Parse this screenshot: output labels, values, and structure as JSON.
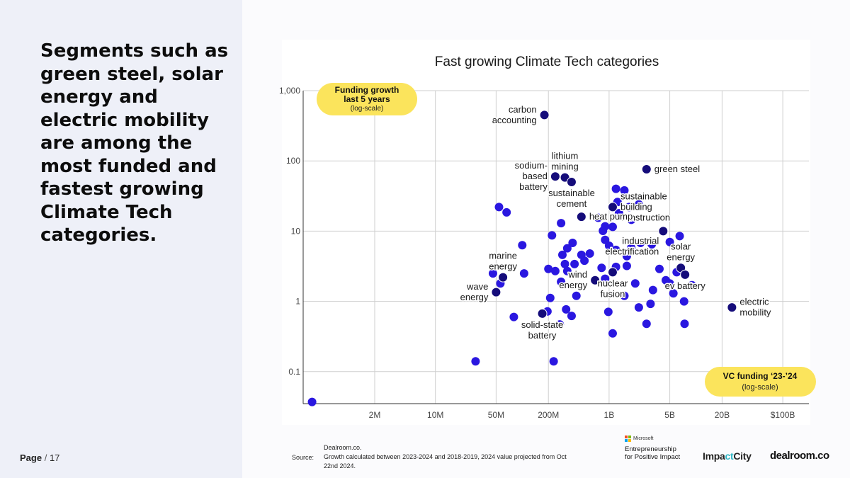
{
  "headline": "Segments such as green steel, solar energy and electric mobility are among the most funded and fastest growing Climate Tech categories.",
  "page": {
    "label": "Page",
    "separator": "/",
    "number": "17"
  },
  "colors": {
    "dot": "#2a17e0",
    "highlight_dot": "#150c7a",
    "badge": "#fbe45c",
    "grid": "#cfcfcf",
    "left_panel": "#eef0f8"
  },
  "chart_data": {
    "type": "scatter",
    "title": "Fast growing Climate Tech categories",
    "xlabel": {
      "title": "VC funding ‘23-’24",
      "subtitle": "(log-scale)"
    },
    "ylabel": {
      "title": "Funding growth last 5 years",
      "subtitle": "(log-scale)"
    },
    "x_scale": "log",
    "y_scale": "log",
    "xlim": [
      300000,
      200000000000
    ],
    "ylim": [
      0.035,
      1000
    ],
    "x_ticks": [
      {
        "value": 2000000,
        "label": "2M"
      },
      {
        "value": 10000000,
        "label": "10M"
      },
      {
        "value": 50000000,
        "label": "50M"
      },
      {
        "value": 200000000,
        "label": "200M"
      },
      {
        "value": 1000000000,
        "label": "1B"
      },
      {
        "value": 5000000000,
        "label": "5B"
      },
      {
        "value": 20000000000,
        "label": "20B"
      },
      {
        "value": 100000000000,
        "label": "$100B"
      }
    ],
    "y_ticks": [
      {
        "value": 0.1,
        "label": "0.1"
      },
      {
        "value": 1,
        "label": "1"
      },
      {
        "value": 10,
        "label": "10"
      },
      {
        "value": 100,
        "label": "100"
      },
      {
        "value": 1000,
        "label": "1,000"
      }
    ],
    "labeled_points": [
      {
        "name": "carbon accounting",
        "lines": [
          "carbon",
          "accounting"
        ],
        "x": 180000000,
        "y": 450,
        "label_pos": "left"
      },
      {
        "name": "lithium mining",
        "lines": [
          "lithium",
          "mining"
        ],
        "x": 310000000,
        "y": 58,
        "label_pos": "above"
      },
      {
        "name": "sodium-based battery",
        "lines": [
          "sodium-",
          "based",
          "battery"
        ],
        "x": 240000000,
        "y": 60,
        "label_pos": "left"
      },
      {
        "name": "sustainable cement",
        "lines": [
          "sustainable",
          "cement"
        ],
        "x": 370000000,
        "y": 50,
        "label_pos": "below"
      },
      {
        "name": "green steel",
        "lines": [
          "green steel"
        ],
        "x": 2700000000,
        "y": 76,
        "label_pos": "right"
      },
      {
        "name": "sustainable building construction",
        "lines": [
          "sustainable",
          "building",
          "construction"
        ],
        "x": 1100000000,
        "y": 22,
        "label_pos": "right"
      },
      {
        "name": "heat pump",
        "lines": [
          "heat pump"
        ],
        "x": 480000000,
        "y": 16,
        "label_pos": "right"
      },
      {
        "name": "industrial electrification",
        "lines": [
          "industrial",
          "electrification"
        ],
        "x": 4200000000,
        "y": 10,
        "label_pos": "below-left"
      },
      {
        "name": "marine energy",
        "lines": [
          "marine",
          "energy"
        ],
        "x": 60000000,
        "y": 2.2,
        "label_pos": "above"
      },
      {
        "name": "wave energy",
        "lines": [
          "wave",
          "energy"
        ],
        "x": 50000000,
        "y": 1.35,
        "label_pos": "left"
      },
      {
        "name": "solid-state battery",
        "lines": [
          "solid-state",
          "battery"
        ],
        "x": 170000000,
        "y": 0.67,
        "label_pos": "below"
      },
      {
        "name": "wind energy",
        "lines": [
          "wind",
          "energy"
        ],
        "x": 690000000,
        "y": 2.0,
        "label_pos": "left"
      },
      {
        "name": "nuclear fusion",
        "lines": [
          "nuclear",
          "fusion"
        ],
        "x": 1100000000,
        "y": 2.6,
        "label_pos": "below"
      },
      {
        "name": "solar energy",
        "lines": [
          "solar",
          "energy"
        ],
        "x": 6700000000,
        "y": 3.0,
        "label_pos": "above"
      },
      {
        "name": "ev battery",
        "lines": [
          "ev battery"
        ],
        "x": 7500000000,
        "y": 2.4,
        "label_pos": "below"
      },
      {
        "name": "electric mobility",
        "lines": [
          "electric",
          "mobility"
        ],
        "x": 26000000000,
        "y": 0.82,
        "label_pos": "right"
      }
    ],
    "other_points": [
      [
        380000,
        0.037
      ],
      [
        29000000,
        0.14
      ],
      [
        230000000,
        0.14
      ],
      [
        80000000,
        0.6
      ],
      [
        195000000,
        0.72
      ],
      [
        270000000,
        0.47
      ],
      [
        370000000,
        0.62
      ],
      [
        1100000000,
        0.35
      ],
      [
        2700000000,
        0.48
      ],
      [
        7400000000,
        0.48
      ],
      [
        210000000,
        1.12
      ],
      [
        320000000,
        0.77
      ],
      [
        420000000,
        1.2
      ],
      [
        980000000,
        0.71
      ],
      [
        1500000000,
        1.2
      ],
      [
        3000000000,
        0.92
      ],
      [
        7300000000,
        1.0
      ],
      [
        2200000000,
        0.82
      ],
      [
        46000000,
        2.5
      ],
      [
        56000000,
        1.8
      ],
      [
        105000000,
        2.5
      ],
      [
        200000000,
        2.9
      ],
      [
        240000000,
        2.7
      ],
      [
        280000000,
        1.9
      ],
      [
        330000000,
        2.7
      ],
      [
        400000000,
        3.4
      ],
      [
        480000000,
        4.6
      ],
      [
        290000000,
        4.6
      ],
      [
        310000000,
        3.4
      ],
      [
        820000000,
        3.0
      ],
      [
        900000000,
        2.1
      ],
      [
        1200000000,
        3.1
      ],
      [
        1600000000,
        3.2
      ],
      [
        2000000000,
        1.8
      ],
      [
        3800000000,
        2.9
      ],
      [
        4500000000,
        2.0
      ],
      [
        5000000000,
        1.8
      ],
      [
        5500000000,
        1.3
      ],
      [
        6000000000,
        2.6
      ],
      [
        9000000000,
        1.7
      ],
      [
        3200000000,
        1.45
      ],
      [
        100000000,
        6.3
      ],
      [
        220000000,
        8.7
      ],
      [
        330000000,
        5.7
      ],
      [
        380000000,
        6.8
      ],
      [
        850000000,
        10.1
      ],
      [
        900000000,
        7.5
      ],
      [
        1000000000,
        6.2
      ],
      [
        1200000000,
        5.4
      ],
      [
        1600000000,
        4.4
      ],
      [
        1800000000,
        5.8
      ],
      [
        2300000000,
        6.8
      ],
      [
        3100000000,
        6.5
      ],
      [
        5000000000,
        7.0
      ],
      [
        6500000000,
        8.5
      ],
      [
        600000000,
        4.8
      ],
      [
        520000000,
        3.8
      ],
      [
        280000000,
        13
      ],
      [
        750000000,
        15.5
      ],
      [
        900000000,
        11.7
      ],
      [
        1100000000,
        11.5
      ],
      [
        1800000000,
        14.5
      ],
      [
        2200000000,
        24
      ],
      [
        54000000,
        22
      ],
      [
        66000000,
        18.5
      ],
      [
        1200000000,
        40
      ],
      [
        1500000000,
        38
      ],
      [
        1250000000,
        26
      ],
      [
        1700000000,
        22
      ],
      [
        1300000000,
        18
      ]
    ]
  }
}
